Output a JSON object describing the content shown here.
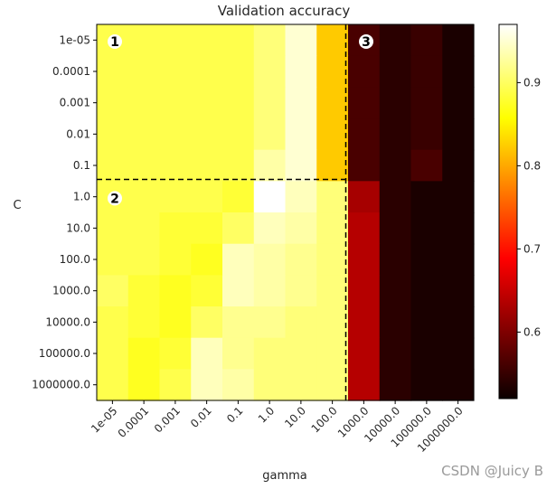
{
  "chart_data": {
    "type": "heatmap",
    "title": "Validation accuracy",
    "xlabel": "gamma",
    "ylabel": "C",
    "x_categories": [
      "1e-05",
      "0.0001",
      "0.001",
      "0.01",
      "0.1",
      "1.0",
      "10.0",
      "100.0",
      "1000.0",
      "10000.0",
      "100000.0",
      "1000000.0"
    ],
    "y_categories": [
      "1e-05",
      "0.0001",
      "0.001",
      "0.01",
      "0.1",
      "1.0",
      "10.0",
      "100.0",
      "1000.0",
      "10000.0",
      "100000.0",
      "1000000.0"
    ],
    "colormap": "hot",
    "vmin": 0.52,
    "vmax": 0.97,
    "colorbar_ticks": [
      "0.6",
      "0.7",
      "0.8",
      "0.9"
    ],
    "colorbar_tick_values": [
      0.6,
      0.7,
      0.8,
      0.9
    ],
    "values": [
      [
        0.89,
        0.89,
        0.89,
        0.89,
        0.89,
        0.91,
        0.95,
        0.82,
        0.56,
        0.54,
        0.55,
        0.53
      ],
      [
        0.89,
        0.89,
        0.89,
        0.89,
        0.89,
        0.91,
        0.95,
        0.82,
        0.56,
        0.54,
        0.55,
        0.53
      ],
      [
        0.89,
        0.89,
        0.89,
        0.89,
        0.89,
        0.91,
        0.95,
        0.82,
        0.56,
        0.54,
        0.55,
        0.53
      ],
      [
        0.89,
        0.89,
        0.89,
        0.89,
        0.89,
        0.91,
        0.95,
        0.82,
        0.56,
        0.54,
        0.55,
        0.53
      ],
      [
        0.89,
        0.89,
        0.89,
        0.89,
        0.89,
        0.93,
        0.95,
        0.82,
        0.56,
        0.54,
        0.56,
        0.53
      ],
      [
        0.89,
        0.89,
        0.89,
        0.89,
        0.88,
        0.97,
        0.94,
        0.91,
        0.62,
        0.54,
        0.53,
        0.53
      ],
      [
        0.89,
        0.89,
        0.88,
        0.88,
        0.9,
        0.94,
        0.93,
        0.91,
        0.63,
        0.54,
        0.53,
        0.53
      ],
      [
        0.89,
        0.89,
        0.88,
        0.87,
        0.94,
        0.93,
        0.92,
        0.91,
        0.63,
        0.54,
        0.53,
        0.53
      ],
      [
        0.9,
        0.88,
        0.87,
        0.88,
        0.94,
        0.93,
        0.92,
        0.91,
        0.63,
        0.54,
        0.53,
        0.53
      ],
      [
        0.89,
        0.88,
        0.87,
        0.9,
        0.92,
        0.92,
        0.91,
        0.91,
        0.63,
        0.54,
        0.53,
        0.53
      ],
      [
        0.89,
        0.87,
        0.88,
        0.94,
        0.92,
        0.91,
        0.91,
        0.91,
        0.63,
        0.54,
        0.53,
        0.53
      ],
      [
        0.89,
        0.87,
        0.89,
        0.94,
        0.93,
        0.91,
        0.91,
        0.91,
        0.63,
        0.54,
        0.53,
        0.53
      ]
    ],
    "dividers": {
      "horizontal_after_row": 4,
      "vertical_after_col": 7
    },
    "annotations": [
      "1",
      "2",
      "3"
    ]
  },
  "watermark": "CSDN @Juicy B"
}
